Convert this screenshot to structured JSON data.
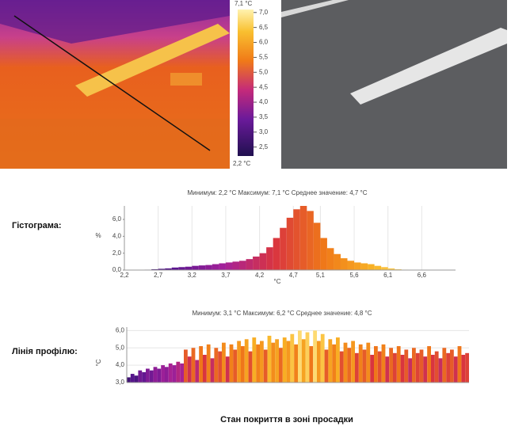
{
  "thermal": {
    "max_label": "7,1 °C",
    "min_label": "2,2 °C",
    "scale_lim": [
      2.2,
      7.1
    ],
    "scale_ticks": [
      {
        "value": 7.0,
        "label": "7,0"
      },
      {
        "value": 6.5,
        "label": "6,5"
      },
      {
        "value": 6.0,
        "label": "6,0"
      },
      {
        "value": 5.5,
        "label": "5,5"
      },
      {
        "value": 5.0,
        "label": "5,0"
      },
      {
        "value": 4.5,
        "label": "4,5"
      },
      {
        "value": 4.0,
        "label": "4,0"
      },
      {
        "value": 3.5,
        "label": "3,5"
      },
      {
        "value": 3.0,
        "label": "3,0"
      },
      {
        "value": 2.5,
        "label": "2,5"
      }
    ]
  },
  "colormap": [
    "#20104f",
    "#5a1590",
    "#a52199",
    "#d9353f",
    "#f07a18",
    "#f9b526",
    "#fff0a0"
  ],
  "histogram_label": "Гістограма:",
  "profile_label": "Лінія профілю:",
  "caption": "Стан покриття в зоні просадки",
  "chart_data": [
    {
      "type": "histogram",
      "title": "Минимум: 2,2  °C Максимум: 7,1 °C Среднее значение: 4,7 °C",
      "x_label": "°C",
      "y_label": "%",
      "bins": [
        2.2,
        2.3,
        2.4,
        2.5,
        2.6,
        2.7,
        2.8,
        2.9,
        3.0,
        3.1,
        3.2,
        3.3,
        3.4,
        3.5,
        3.6,
        3.7,
        3.8,
        3.9,
        4.0,
        4.1,
        4.2,
        4.3,
        4.4,
        4.5,
        4.6,
        4.7,
        4.8,
        4.9,
        5.0,
        5.1,
        5.2,
        5.3,
        5.4,
        5.5,
        5.6,
        5.7,
        5.8,
        5.9,
        6.0,
        6.1,
        6.2,
        6.3,
        6.4,
        6.5,
        6.6
      ],
      "values": [
        0,
        0,
        0.02,
        0.05,
        0.1,
        0.15,
        0.2,
        0.3,
        0.35,
        0.4,
        0.5,
        0.55,
        0.6,
        0.7,
        0.8,
        0.9,
        1.0,
        1.1,
        1.3,
        1.6,
        2.0,
        2.7,
        3.8,
        5.0,
        6.2,
        7.2,
        7.6,
        7.0,
        5.6,
        3.8,
        2.6,
        1.9,
        1.4,
        1.1,
        0.9,
        0.8,
        0.7,
        0.5,
        0.35,
        0.2,
        0.1,
        0.05,
        0.02,
        0
      ],
      "xlim": [
        2.2,
        7.1
      ],
      "ylim": [
        0,
        7.6
      ],
      "xticks": [
        {
          "value": 2.2,
          "label": "2,2"
        },
        {
          "value": 2.7,
          "label": "2,7"
        },
        {
          "value": 3.2,
          "label": "3,2"
        },
        {
          "value": 3.7,
          "label": "3,7"
        },
        {
          "value": 4.2,
          "label": "4,2"
        },
        {
          "value": 4.7,
          "label": "4,7"
        },
        {
          "value": 5.1,
          "label": "5,1"
        },
        {
          "value": 5.6,
          "label": "5,6"
        },
        {
          "value": 6.1,
          "label": "6,1"
        },
        {
          "value": 6.6,
          "label": "6,6"
        }
      ],
      "yticks": [
        {
          "value": 0,
          "label": "0,0"
        },
        {
          "value": 2,
          "label": "2,0"
        },
        {
          "value": 4,
          "label": "4,0"
        },
        {
          "value": 6,
          "label": "6,0"
        }
      ],
      "grid": true
    },
    {
      "type": "profile",
      "title": "Минимум: 3,1 °C Максимум: 6,2 °C Среднее значение: 4,8 °C",
      "y_label": "°C",
      "values": [
        3.3,
        3.5,
        3.4,
        3.7,
        3.6,
        3.8,
        3.7,
        3.9,
        3.8,
        4.0,
        3.9,
        4.1,
        4.0,
        4.2,
        4.1,
        4.9,
        4.5,
        5.0,
        4.3,
        5.1,
        4.6,
        5.2,
        4.4,
        5.0,
        4.8,
        5.3,
        4.5,
        5.2,
        4.9,
        5.4,
        5.1,
        5.5,
        4.8,
        5.6,
        5.2,
        5.4,
        4.9,
        5.7,
        5.3,
        5.5,
        5.0,
        5.6,
        5.4,
        5.8,
        5.2,
        6.0,
        5.5,
        5.9,
        5.1,
        6.0,
        5.4,
        5.8,
        4.9,
        5.5,
        5.2,
        5.6,
        4.8,
        5.3,
        5.0,
        5.4,
        4.7,
        5.2,
        4.9,
        5.3,
        4.6,
        5.1,
        4.8,
        5.2,
        4.5,
        5.0,
        4.7,
        5.1,
        4.6,
        4.9,
        4.4,
        5.0,
        4.7,
        4.9,
        4.5,
        5.1,
        4.6,
        4.8,
        4.4,
        5.0,
        4.7,
        4.9,
        4.5,
        5.1,
        4.6,
        4.7
      ],
      "ylim": [
        3.0,
        6.2
      ],
      "yticks": [
        {
          "value": 3,
          "label": "3,0"
        },
        {
          "value": 4,
          "label": "4,0"
        },
        {
          "value": 5,
          "label": "5,0"
        },
        {
          "value": 6,
          "label": "6,0"
        }
      ],
      "grid": true
    }
  ]
}
